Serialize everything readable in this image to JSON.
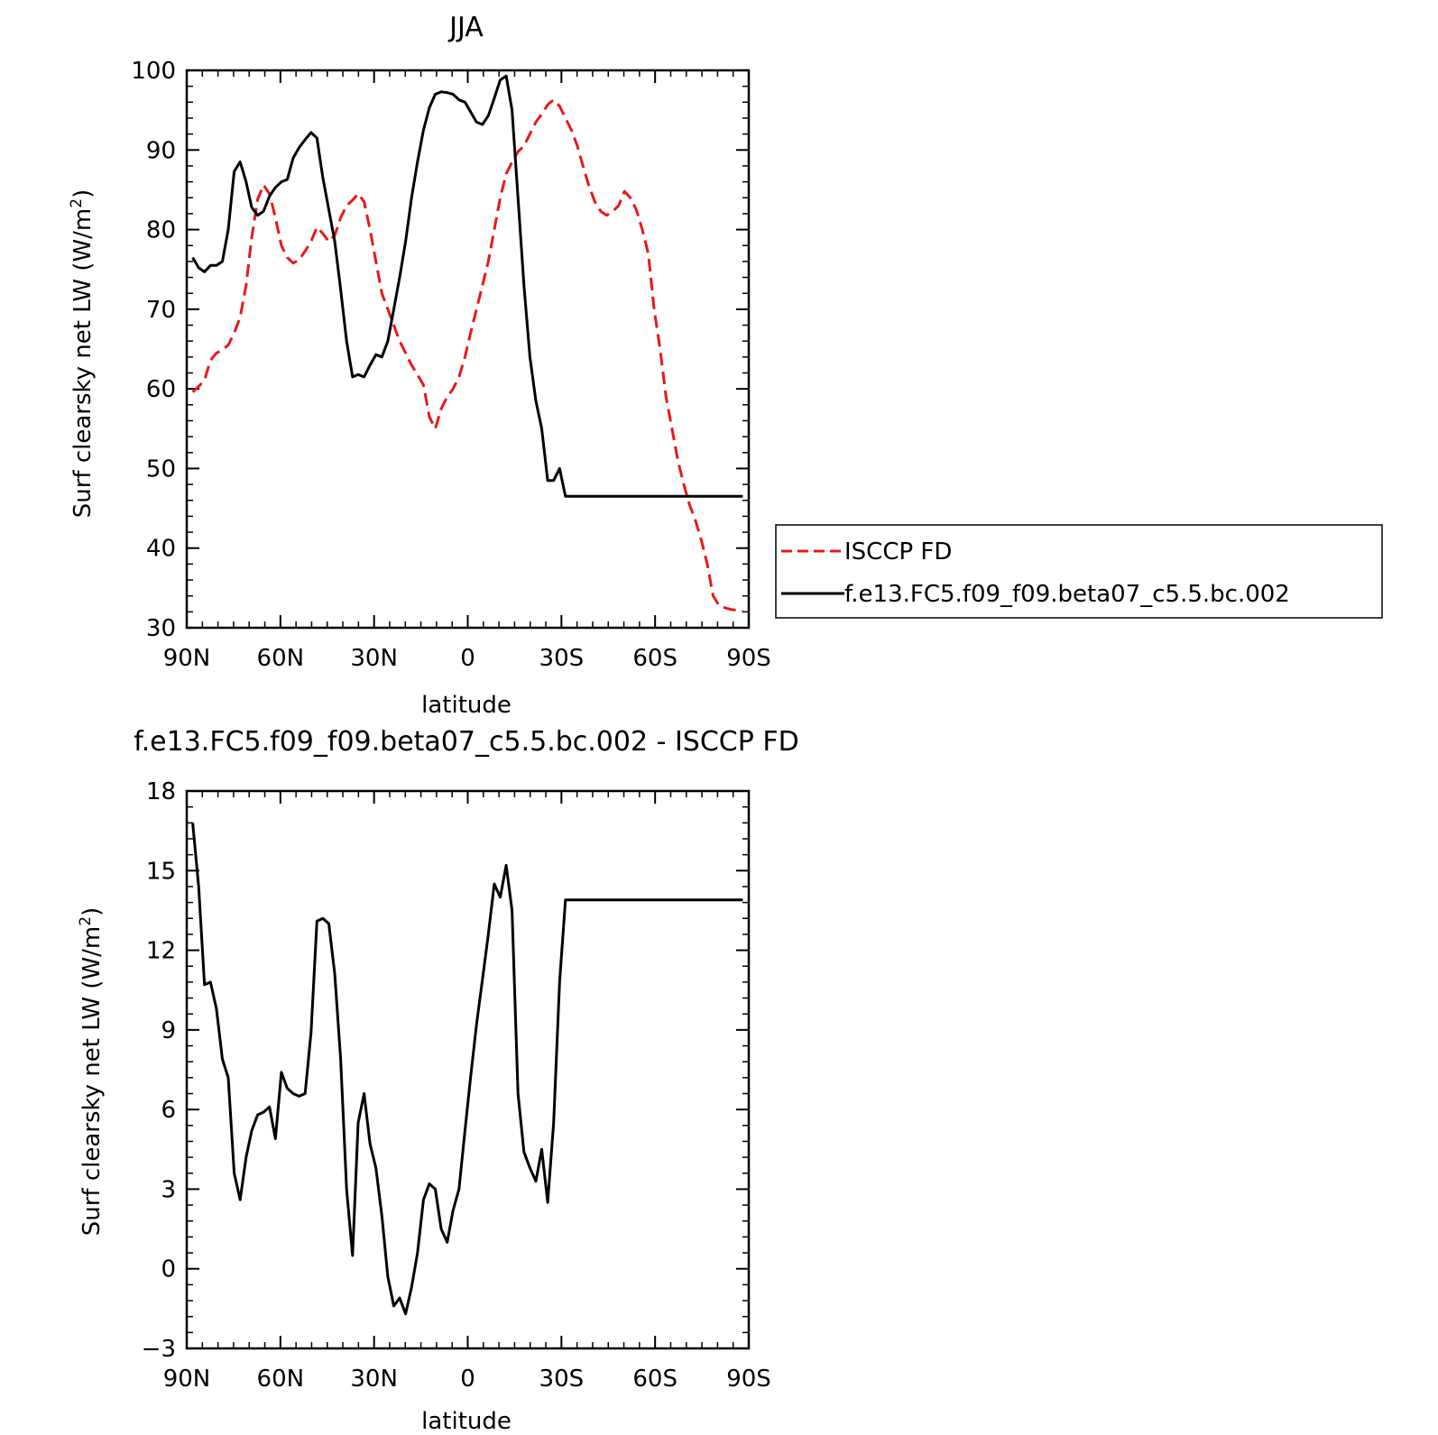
{
  "chart_data": [
    {
      "type": "line",
      "title": "JJA",
      "xlabel": "latitude",
      "ylabel": "Surf clearsky net LW (W/m²)",
      "ylabel_main": "Surf clearsky net LW (W/m",
      "ylabel_sup": "2",
      "ylabel_end": ")",
      "xlim": [
        90,
        -90
      ],
      "ylim": [
        30,
        100
      ],
      "x_ticks": [
        90,
        60,
        30,
        0,
        -30,
        -60,
        -90
      ],
      "x_tick_labels": [
        "90N",
        "60N",
        "30N",
        "0",
        "30S",
        "60S",
        "90S"
      ],
      "y_ticks": [
        30,
        40,
        50,
        60,
        70,
        80,
        90,
        100
      ],
      "y_tick_labels": [
        "30",
        "40",
        "50",
        "60",
        "70",
        "80",
        "90",
        "100"
      ],
      "legend_placement": "right",
      "series": [
        {
          "name": "ISCCP FD",
          "color": "#e8181a",
          "dash": "dashed",
          "x": [
            88.1,
            86.2,
            84.3,
            82.4,
            80.5,
            78.6,
            76.7,
            74.8,
            72.9,
            71.0,
            69.2,
            67.3,
            65.4,
            63.5,
            61.6,
            59.7,
            57.8,
            55.9,
            54.0,
            52.1,
            50.2,
            48.3,
            46.4,
            44.5,
            42.6,
            40.7,
            38.8,
            36.9,
            35.1,
            33.2,
            31.3,
            29.4,
            27.5,
            25.6,
            23.7,
            21.8,
            19.9,
            18.0,
            16.1,
            14.2,
            12.3,
            10.4,
            8.5,
            6.6,
            4.7,
            2.8,
            0.9,
            -0.9,
            -2.8,
            -4.7,
            -6.6,
            -8.5,
            -10.4,
            -12.3,
            -14.2,
            -16.1,
            -18.0,
            -19.9,
            -21.8,
            -23.7,
            -25.6,
            -27.5,
            -29.4,
            -31.3,
            -33.2,
            -35.1,
            -36.9,
            -38.8,
            -40.7,
            -42.6,
            -44.5,
            -46.4,
            -48.3,
            -50.2,
            -52.1,
            -54.0,
            -55.9,
            -57.8,
            -59.7,
            -61.6,
            -63.5,
            -65.4,
            -67.3,
            -69.2,
            -71.0,
            -72.9,
            -74.8,
            -76.7,
            -78.6,
            -80.5,
            -82.4,
            -84.3,
            -86.2,
            -88.1
          ],
          "values": [
            59.6,
            60.3,
            61.1,
            63.6,
            64.5,
            64.9,
            65.5,
            67.0,
            69.0,
            73.0,
            79.0,
            83.8,
            85.6,
            84.5,
            81.5,
            78.0,
            76.5,
            75.8,
            76.2,
            77.3,
            78.5,
            80.3,
            79.5,
            78.5,
            79.3,
            81.5,
            83.0,
            83.7,
            84.5,
            83.5,
            80.0,
            76.0,
            72.0,
            70.0,
            68.0,
            66.0,
            64.5,
            63.0,
            61.8,
            60.5,
            56.5,
            55.0,
            57.5,
            59.0,
            60.0,
            61.5,
            64.0,
            67.0,
            70.0,
            73.0,
            76.0,
            80.0,
            84.0,
            87.0,
            88.5,
            89.8,
            90.5,
            92.0,
            93.5,
            94.5,
            95.7,
            96.3,
            95.5,
            94.0,
            92.5,
            90.5,
            88.0,
            85.5,
            83.5,
            82.3,
            81.8,
            82.3,
            83.0,
            84.8,
            84.0,
            82.5,
            80.0,
            77.0,
            70.0,
            65.0,
            59.0,
            55.0,
            51.0,
            48.0,
            45.5,
            43.5,
            41.0,
            38.0,
            34.0,
            32.8,
            32.5,
            32.3,
            32.2,
            32.1
          ]
        },
        {
          "name": "f.e13.FC5.f09_f09.beta07_c5.5.bc.002",
          "color": "#000000",
          "dash": "solid",
          "x": [
            88.1,
            86.2,
            84.3,
            82.4,
            80.5,
            78.6,
            76.7,
            74.8,
            72.9,
            71.0,
            69.2,
            67.3,
            65.4,
            63.5,
            61.6,
            59.7,
            57.8,
            55.9,
            54.0,
            52.1,
            50.2,
            48.3,
            46.4,
            44.5,
            42.6,
            40.7,
            38.8,
            36.9,
            35.1,
            33.2,
            31.3,
            29.4,
            27.5,
            25.6,
            23.7,
            21.8,
            19.9,
            18.0,
            16.1,
            14.2,
            12.3,
            10.4,
            8.5,
            6.6,
            4.7,
            2.8,
            0.9,
            -0.9,
            -2.8,
            -4.7,
            -6.6,
            -8.5,
            -10.4,
            -12.3,
            -14.2,
            -16.1,
            -18.0,
            -19.9,
            -21.8,
            -23.7,
            -25.6,
            -27.5,
            -29.4,
            -31.3,
            -33.2,
            -35.1,
            -36.9,
            -38.8,
            -40.7,
            -42.6,
            -44.5,
            -46.4,
            -48.3,
            -50.2,
            -52.1,
            -54.0,
            -55.9,
            -57.8,
            -59.7,
            -61.6,
            -63.5,
            -65.4,
            -67.3,
            -69.2,
            -71.0,
            -72.9,
            -74.8,
            -76.7,
            -78.6,
            -80.5,
            -82.4,
            -84.3,
            -86.2,
            -88.1
          ],
          "values": [
            76.5,
            75.2,
            74.7,
            75.5,
            75.5,
            76.0,
            80.0,
            87.3,
            88.5,
            86.0,
            82.8,
            81.8,
            82.3,
            84.2,
            85.3,
            86.0,
            86.3,
            89.0,
            90.3,
            91.3,
            92.2,
            91.5,
            86.5,
            82.5,
            78.5,
            72.5,
            66.0,
            61.5,
            61.8,
            61.5,
            63.0,
            64.3,
            64.0,
            66.0,
            70.0,
            74.0,
            78.5,
            84.0,
            88.5,
            92.5,
            95.3,
            97.0,
            97.3,
            97.2,
            97.0,
            96.3,
            96.0,
            94.8,
            93.5,
            93.2,
            94.3,
            96.5,
            98.8,
            99.3,
            95.0,
            84.0,
            73.0,
            64.0,
            58.5,
            55.0,
            48.5,
            48.5,
            50.0,
            46.5,
            46.5,
            46.5,
            46.5,
            46.5,
            46.5,
            46.5,
            46.5,
            46.5,
            46.5,
            46.5,
            46.5,
            46.5,
            46.5,
            46.5,
            46.5,
            46.5,
            46.5,
            46.5,
            46.5,
            46.5,
            46.5,
            46.5,
            46.5,
            46.5,
            46.5,
            46.5,
            46.5,
            46.5,
            46.5,
            46.5
          ]
        }
      ]
    },
    {
      "type": "line",
      "title": "f.e13.FC5.f09_f09.beta07_c5.5.bc.002 - ISCCP FD",
      "xlabel": "latitude",
      "ylabel": "Surf clearsky net LW (W/m²)",
      "ylabel_main": "Surf clearsky net LW (W/m",
      "ylabel_sup": "2",
      "ylabel_end": ")",
      "xlim": [
        90,
        -90
      ],
      "ylim": [
        -3,
        18
      ],
      "x_ticks": [
        90,
        60,
        30,
        0,
        -30,
        -60,
        -90
      ],
      "x_tick_labels": [
        "90N",
        "60N",
        "30N",
        "0",
        "30S",
        "60S",
        "90S"
      ],
      "y_ticks": [
        -3,
        0,
        3,
        6,
        9,
        12,
        15,
        18
      ],
      "y_tick_labels": [
        "−3",
        "0",
        "3",
        "6",
        "9",
        "12",
        "15",
        "18"
      ],
      "series": [
        {
          "color": "#000000",
          "dash": "solid",
          "x": [
            88.1,
            86.2,
            84.3,
            82.4,
            80.5,
            78.6,
            76.7,
            74.8,
            72.9,
            71.0,
            69.2,
            67.3,
            65.4,
            63.5,
            61.6,
            59.7,
            57.8,
            55.9,
            54.0,
            52.1,
            50.2,
            48.3,
            46.4,
            44.5,
            42.6,
            40.7,
            38.8,
            36.9,
            35.1,
            33.2,
            31.3,
            29.4,
            27.5,
            25.6,
            23.7,
            21.8,
            19.9,
            18.0,
            16.1,
            14.2,
            12.3,
            10.4,
            8.5,
            6.6,
            4.7,
            2.8,
            0.9,
            -0.9,
            -2.8,
            -4.7,
            -6.6,
            -8.5,
            -10.4,
            -12.3,
            -14.2,
            -16.1,
            -18.0,
            -19.9,
            -21.8,
            -23.7,
            -25.6,
            -27.5,
            -29.4,
            -31.3,
            -33.2,
            -35.1,
            -36.9,
            -38.8,
            -40.7,
            -42.6,
            -44.5,
            -46.4,
            -48.3,
            -50.2,
            -52.1,
            -54.0,
            -55.9,
            -57.8,
            -59.7,
            -61.6,
            -63.5,
            -65.4,
            -67.3,
            -69.2,
            -71.0,
            -72.9,
            -74.8,
            -76.7,
            -78.6,
            -80.5,
            -82.4,
            -84.3,
            -86.2,
            -88.1
          ],
          "values": [
            16.8,
            14.4,
            10.7,
            10.8,
            9.8,
            7.9,
            7.2,
            3.6,
            2.6,
            4.2,
            5.2,
            5.8,
            5.9,
            6.1,
            4.9,
            7.4,
            6.8,
            6.6,
            6.5,
            6.6,
            8.9,
            13.1,
            13.2,
            13.0,
            11.1,
            7.9,
            3.0,
            0.5,
            5.5,
            6.6,
            4.7,
            3.8,
            2.0,
            -0.3,
            -1.4,
            -1.1,
            -1.7,
            -0.7,
            0.6,
            2.6,
            3.2,
            3.0,
            1.5,
            1.0,
            2.2,
            3.0,
            5.2,
            7.2,
            9.2,
            10.9,
            12.6,
            14.5,
            14.0,
            15.2,
            13.5,
            6.6,
            4.4,
            3.8,
            3.3,
            4.5,
            2.5,
            5.5,
            10.8,
            13.9,
            13.9,
            13.9,
            13.9,
            13.9,
            13.9,
            13.9,
            13.9,
            13.9,
            13.9,
            13.9,
            13.9,
            13.9,
            13.9,
            13.9,
            13.9,
            13.9,
            13.9,
            13.9,
            13.9,
            13.9,
            13.9,
            13.9,
            13.9,
            13.9,
            13.9,
            13.9,
            13.9,
            13.9,
            13.9,
            13.9
          ]
        }
      ]
    }
  ]
}
